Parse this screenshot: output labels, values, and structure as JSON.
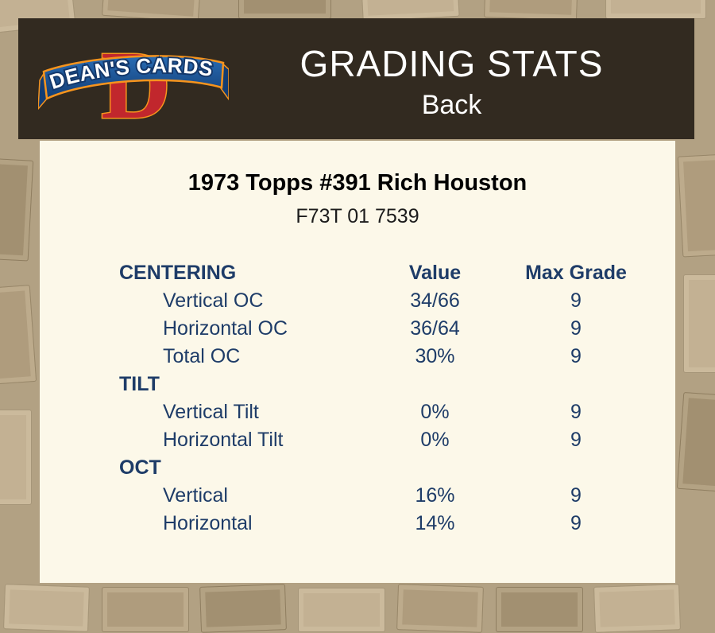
{
  "header": {
    "logo": {
      "monogram": "D",
      "brand": "DEAN'S CARDS"
    },
    "title": "GRADING STATS",
    "subtitle": "Back"
  },
  "card": {
    "title": "1973 Topps #391 Rich Houston",
    "subtitle": "F73T 01 7539",
    "table": {
      "value_header": "Value",
      "max_grade_header": "Max Grade",
      "sections": [
        {
          "label": "CENTERING",
          "rows": [
            {
              "label": "Vertical OC",
              "value": "34/66",
              "max_grade": "9"
            },
            {
              "label": "Horizontal OC",
              "value": "36/64",
              "max_grade": "9"
            },
            {
              "label": "Total OC",
              "value": "30%",
              "max_grade": "9"
            }
          ]
        },
        {
          "label": "TILT",
          "rows": [
            {
              "label": "Vertical Tilt",
              "value": "0%",
              "max_grade": "9"
            },
            {
              "label": "Horizontal Tilt",
              "value": "0%",
              "max_grade": "9"
            }
          ]
        },
        {
          "label": "OCT",
          "rows": [
            {
              "label": "Vertical",
              "value": "16%",
              "max_grade": "9"
            },
            {
              "label": "Horizontal",
              "value": "14%",
              "max_grade": "9"
            }
          ]
        }
      ]
    }
  },
  "colors": {
    "page_background": "#b2a183",
    "header_background": "#322a20",
    "card_background": "#fcf8e9",
    "table_text": "#1e3c68",
    "header_text": "#ffffff",
    "logo_red": "#c1272d",
    "logo_orange": "#f7941d",
    "banner_blue": "#1e5fa8",
    "banner_blue_dark": "#123d75"
  }
}
